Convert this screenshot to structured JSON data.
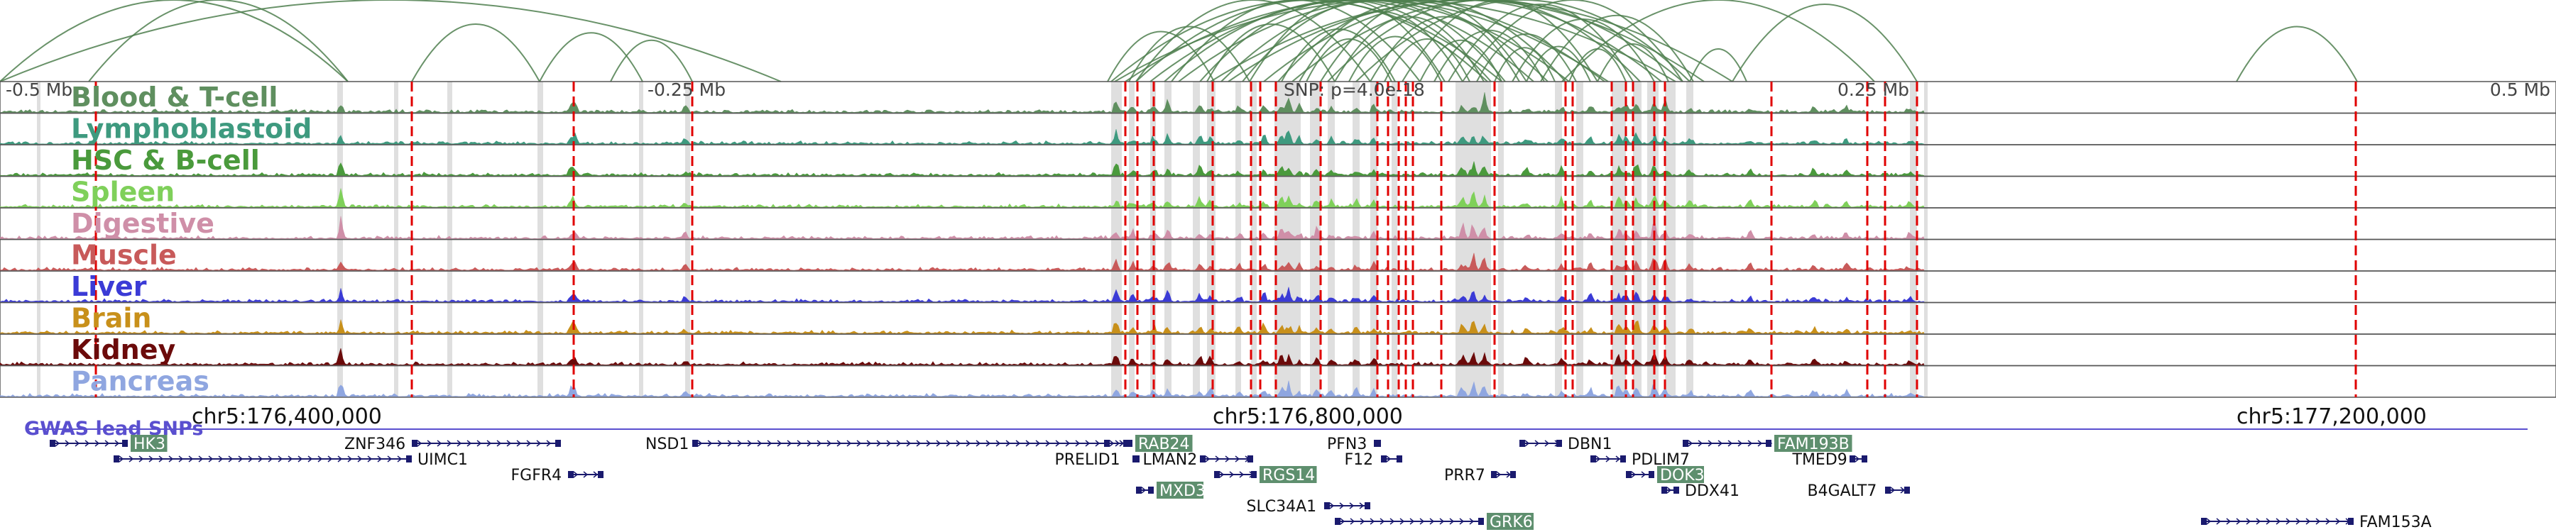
{
  "scale": {
    "left_label": "-0.5 Mb",
    "mid_left_label": "-0.25 Mb",
    "center_label": "SNP: p=4.0e-18",
    "mid_right_label": "0.25 Mb",
    "right_label": "0.5 Mb"
  },
  "coordinates": {
    "left": "chr5:176,400,000",
    "center": "chr5:176,800,000",
    "right": "chr5:177,200,000"
  },
  "tracks": [
    {
      "name": "Blood & T-cell",
      "color": "#5f8f5f"
    },
    {
      "name": "Lymphoblastoid",
      "color": "#3e9a7f"
    },
    {
      "name": "HSC & B-cell",
      "color": "#4a9a3c"
    },
    {
      "name": "Spleen",
      "color": "#7fd05a"
    },
    {
      "name": "Digestive",
      "color": "#cf8fa8"
    },
    {
      "name": "Muscle",
      "color": "#c85a5a"
    },
    {
      "name": "Liver",
      "color": "#3b3bd6"
    },
    {
      "name": "Brain",
      "color": "#c8901a"
    },
    {
      "name": "Kidney",
      "color": "#6b0a0a"
    },
    {
      "name": "Pancreas",
      "color": "#8fa6e0"
    }
  ],
  "gwas_label": "GWAS lead SNPs",
  "genes": [
    {
      "name": "HK3",
      "highlight": true
    },
    {
      "name": "ZNF346",
      "highlight": false
    },
    {
      "name": "UIMC1",
      "highlight": false
    },
    {
      "name": "FGFR4",
      "highlight": false
    },
    {
      "name": "NSD1",
      "highlight": false
    },
    {
      "name": "RAB24",
      "highlight": true
    },
    {
      "name": "PRELID1",
      "highlight": false
    },
    {
      "name": "MXD3",
      "highlight": true
    },
    {
      "name": "LMAN2",
      "highlight": false
    },
    {
      "name": "RGS14",
      "highlight": true
    },
    {
      "name": "SLC34A1",
      "highlight": false
    },
    {
      "name": "GRK6",
      "highlight": true
    },
    {
      "name": "PFN3",
      "highlight": false
    },
    {
      "name": "F12",
      "highlight": false
    },
    {
      "name": "PRR7",
      "highlight": false
    },
    {
      "name": "DBN1",
      "highlight": false
    },
    {
      "name": "PDLIM7",
      "highlight": false
    },
    {
      "name": "DOK3",
      "highlight": true
    },
    {
      "name": "DDX41",
      "highlight": false
    },
    {
      "name": "FAM193B",
      "highlight": true
    },
    {
      "name": "TMED9",
      "highlight": false
    },
    {
      "name": "B4GALT7",
      "highlight": false
    },
    {
      "name": "FAM153A",
      "highlight": false
    }
  ],
  "colors": {
    "arc": "#4f7f4f",
    "snp_line": "#e00000",
    "highlight_band": "#d9d9d9",
    "gene": "#1a1a6e",
    "gene_highlight_bg": "#5e8f6e",
    "gwas": "#5a4fcf"
  }
}
